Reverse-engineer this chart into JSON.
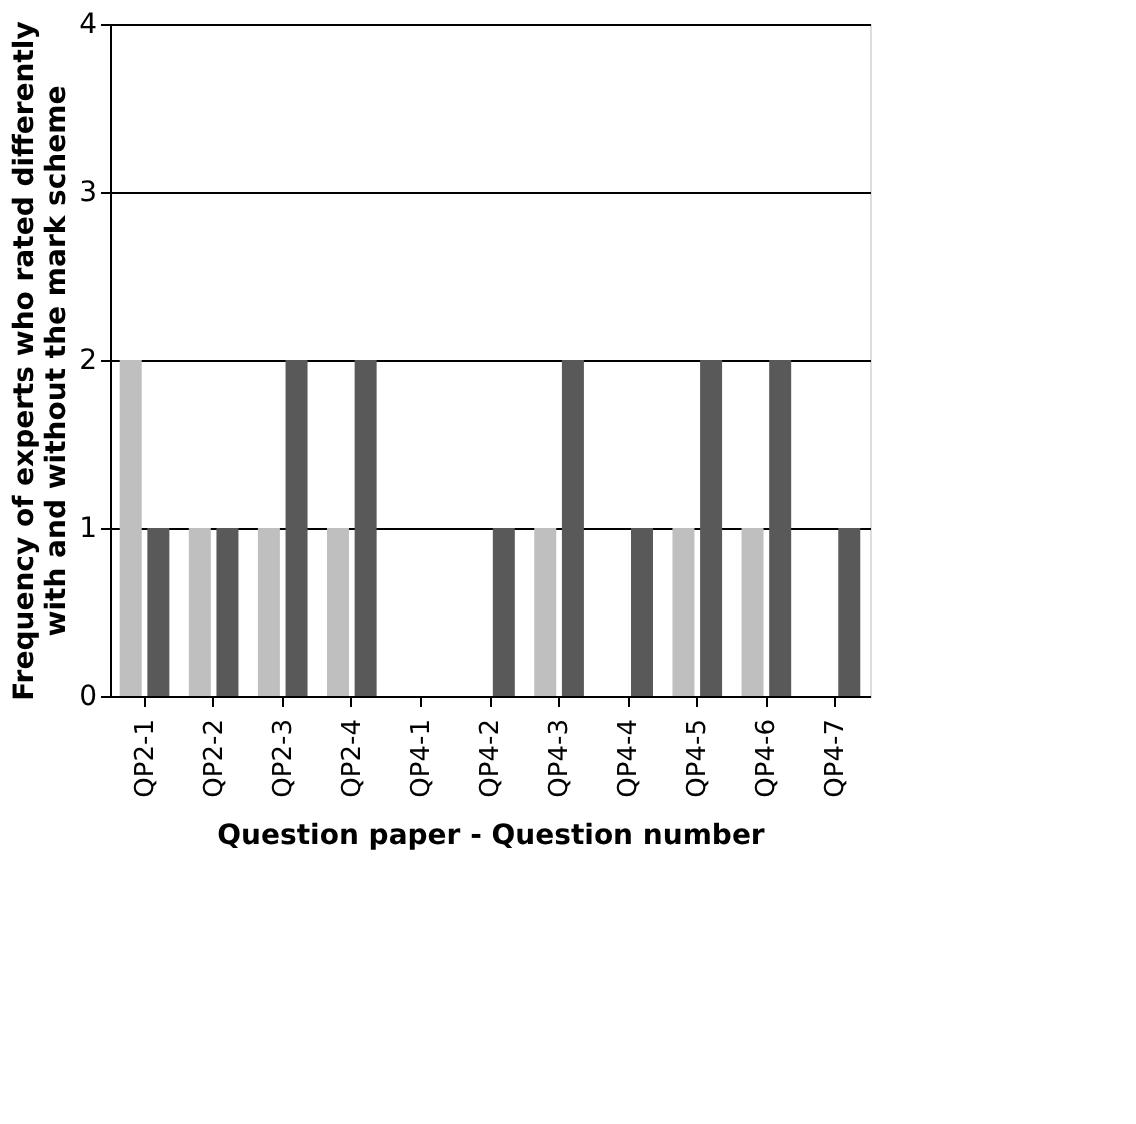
{
  "chart_data": {
    "type": "bar",
    "xlabel": "Question paper - Question number",
    "ylabel": "Frequency of experts who rated differently with and without the mark scheme",
    "categories": [
      "QP2-1",
      "QP2-2",
      "QP2-3",
      "QP2-4",
      "QP4-1",
      "QP4-2",
      "QP4-3",
      "QP4-4",
      "QP4-5",
      "QP4-6",
      "QP4-7"
    ],
    "series": [
      {
        "color": "#bfbfbf",
        "values": [
          2,
          1,
          1,
          1,
          0,
          0,
          1,
          0,
          1,
          1,
          0
        ]
      },
      {
        "color": "#595959",
        "values": [
          1,
          1,
          2,
          2,
          0,
          1,
          2,
          1,
          2,
          2,
          1
        ]
      }
    ],
    "ylim": [
      0,
      4
    ],
    "yticks": [
      0,
      1,
      2,
      3,
      4
    ],
    "grid": "y",
    "legend": false
  }
}
